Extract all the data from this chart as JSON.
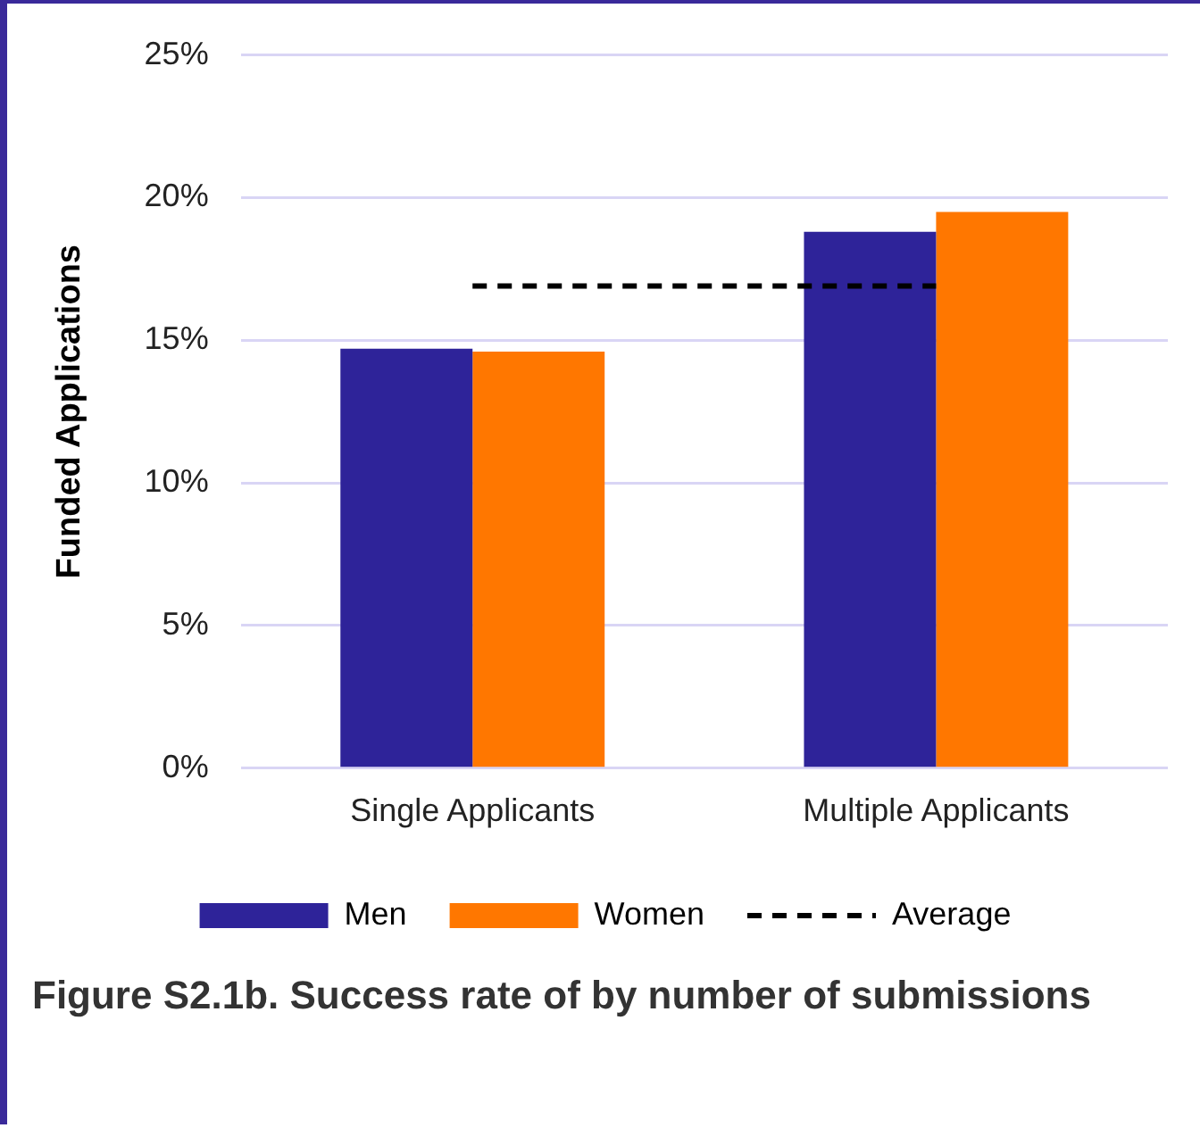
{
  "chart_data": {
    "type": "bar",
    "title": "Figure S2.1b. Success rate of by number of submissions",
    "ylabel": "Funded Applications",
    "categories": [
      "Single Applicants",
      "Multiple Applicants"
    ],
    "series": [
      {
        "name": "Men",
        "color": "#2e2399",
        "values": [
          14.7,
          18.8
        ]
      },
      {
        "name": "Women",
        "color": "#ff7700",
        "values": [
          14.6,
          19.5
        ]
      }
    ],
    "ylim": [
      0,
      25
    ],
    "yticks": [
      {
        "value": 0,
        "label": "0%"
      },
      {
        "value": 5,
        "label": "5%"
      },
      {
        "value": 10,
        "label": "10%"
      },
      {
        "value": 15,
        "label": "15%"
      },
      {
        "value": 20,
        "label": "20%"
      },
      {
        "value": 25,
        "label": "25%"
      }
    ],
    "grid": "y",
    "legend": "bottom",
    "ref_lines": [
      {
        "axis": "y",
        "value": 16.9,
        "label": "Average",
        "color": "#000000",
        "line_style": "dashed"
      }
    ]
  }
}
